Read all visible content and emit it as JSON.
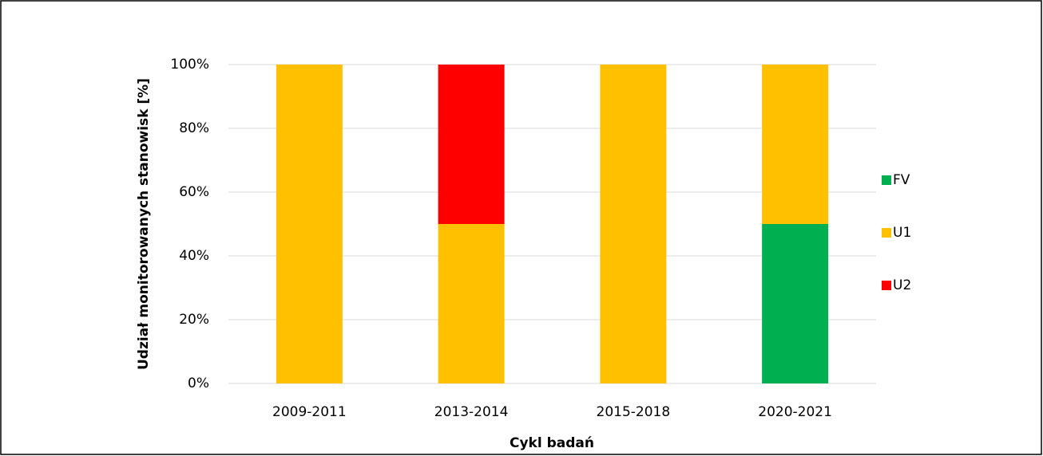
{
  "chart_data": {
    "type": "stacked_bar",
    "y_label": "Udział monitorowanych stanowisk [%]",
    "x_label": "Cykl badań",
    "categories": [
      "2009-2011",
      "2013-2014",
      "2015-2018",
      "2020-2021"
    ],
    "series": [
      {
        "name": "FV",
        "color": "#00b050",
        "values": [
          0,
          0,
          0,
          50
        ]
      },
      {
        "name": "U1",
        "color": "#ffc000",
        "values": [
          100,
          50,
          100,
          50
        ]
      },
      {
        "name": "U2",
        "color": "#ff0000",
        "values": [
          0,
          50,
          0,
          0
        ]
      }
    ],
    "ylim": [
      0,
      100
    ],
    "yticks": [
      {
        "value": 0,
        "label": "0%"
      },
      {
        "value": 20,
        "label": "20%"
      },
      {
        "value": 40,
        "label": "40%"
      },
      {
        "value": 60,
        "label": "60%"
      },
      {
        "value": 80,
        "label": "80%"
      },
      {
        "value": 100,
        "label": "100%"
      }
    ],
    "grid": true,
    "legend": "right"
  }
}
